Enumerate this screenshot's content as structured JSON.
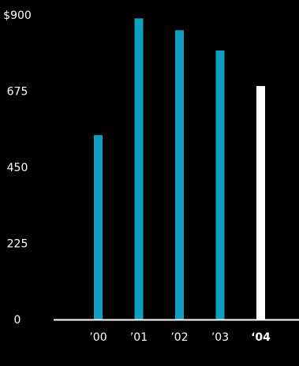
{
  "colors": {
    "background": "#000000",
    "bar": "#109ec0",
    "highlight_bar": "#ffffff",
    "text": "#ffffff"
  },
  "chart_data": {
    "type": "bar",
    "title": "",
    "xlabel": "",
    "ylabel": "",
    "categories": [
      "’00",
      "’01",
      "’02",
      "’03",
      "‘04"
    ],
    "values": [
      545,
      890,
      855,
      795,
      690
    ],
    "highlight_index": 4,
    "ylim": [
      0,
      900
    ],
    "yticks": [
      0,
      225,
      450,
      675,
      900
    ],
    "ytick_labels": [
      "0",
      "225",
      "450",
      "675",
      "$900"
    ],
    "grid": false
  }
}
